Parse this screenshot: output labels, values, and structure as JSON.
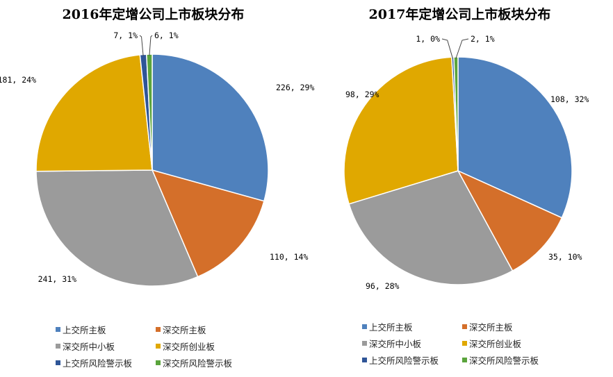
{
  "chart_data": [
    {
      "type": "pie",
      "title": "2016年定增公司上市板块分布",
      "slices": [
        {
          "name": "上交所主板",
          "value": 226,
          "percent": "29%",
          "label": "226, 29%",
          "color": "#4f81bd"
        },
        {
          "name": "深交所主板",
          "value": 110,
          "percent": "14%",
          "label": "110, 14%",
          "color": "#d46f2a"
        },
        {
          "name": "深交所中小板",
          "value": 241,
          "percent": "31%",
          "label": "241, 31%",
          "color": "#9b9b9b"
        },
        {
          "name": "深交所创业板",
          "value": 181,
          "percent": "24%",
          "label": "181, 24%",
          "color": "#e0a800"
        },
        {
          "name": "上交所风险警示板",
          "value": 7,
          "percent": "1%",
          "label": "7, 1%",
          "color": "#2f5597"
        },
        {
          "name": "深交所风险警示板",
          "value": 6,
          "percent": "1%",
          "label": "6, 1%",
          "color": "#5aa43c"
        }
      ],
      "legend": [
        "上交所主板",
        "深交所主板",
        "深交所中小板",
        "深交所创业板",
        "上交所风险警示板",
        "深交所风险警示板"
      ]
    },
    {
      "type": "pie",
      "title": "2017年定增公司上市板块分布",
      "slices": [
        {
          "name": "上交所主板",
          "value": 108,
          "percent": "32%",
          "label": "108, 32%",
          "color": "#4f81bd"
        },
        {
          "name": "深交所主板",
          "value": 35,
          "percent": "10%",
          "label": "35, 10%",
          "color": "#d46f2a"
        },
        {
          "name": "深交所中小板",
          "value": 96,
          "percent": "28%",
          "label": "96, 28%",
          "color": "#9b9b9b"
        },
        {
          "name": "深交所创业板",
          "value": 98,
          "percent": "29%",
          "label": "98, 29%",
          "color": "#e0a800"
        },
        {
          "name": "上交所风险警示板",
          "value": 1,
          "percent": "0%",
          "label": "1, 0%",
          "color": "#2f5597"
        },
        {
          "name": "深交所风险警示板",
          "value": 2,
          "percent": "1%",
          "label": "2, 1%",
          "color": "#5aa43c"
        }
      ],
      "legend": [
        "上交所主板",
        "深交所主板",
        "深交所中小板",
        "深交所创业板",
        "上交所风险警示板",
        "深交所风险警示板"
      ]
    }
  ]
}
